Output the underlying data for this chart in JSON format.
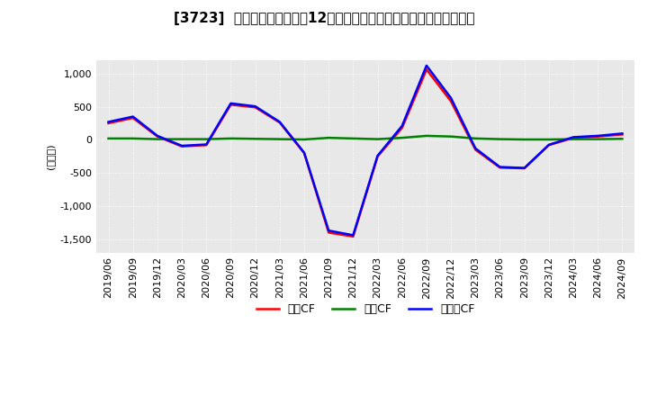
{
  "title": "[3723]  キャッシュフローの12か月移動合計の対前年同期増減額の推移",
  "ylabel": "(百万円)",
  "legend": [
    "営業CF",
    "投資CF",
    "フリーCF"
  ],
  "line_colors": [
    "#ff0000",
    "#008000",
    "#0000ff"
  ],
  "background_color": "#ffffff",
  "plot_bg_color": "#f0f0f0",
  "ylim": [
    -1700,
    1200
  ],
  "yticks": [
    -1500,
    -1000,
    -500,
    0,
    500,
    1000
  ],
  "x_labels": [
    "2019/06",
    "2019/09",
    "2019/12",
    "2020/03",
    "2020/06",
    "2020/09",
    "2020/12",
    "2021/03",
    "2021/06",
    "2021/09",
    "2021/12",
    "2022/03",
    "2022/06",
    "2022/09",
    "2022/12",
    "2023/03",
    "2023/06",
    "2023/09",
    "2023/12",
    "2024/03",
    "2024/06",
    "2024/09"
  ],
  "営業CF": [
    250,
    330,
    50,
    -100,
    -80,
    530,
    490,
    260,
    -200,
    -1400,
    -1460,
    -250,
    180,
    1060,
    580,
    -150,
    -420,
    -430,
    -80,
    30,
    50,
    80
  ],
  "投資CF": [
    20,
    20,
    10,
    10,
    10,
    20,
    15,
    10,
    5,
    30,
    20,
    10,
    30,
    60,
    50,
    20,
    10,
    5,
    5,
    10,
    10,
    15
  ],
  "フリーCF": [
    270,
    350,
    60,
    -90,
    -70,
    550,
    505,
    270,
    -195,
    -1370,
    -1440,
    -240,
    210,
    1120,
    630,
    -130,
    -410,
    -425,
    -75,
    40,
    60,
    95
  ]
}
